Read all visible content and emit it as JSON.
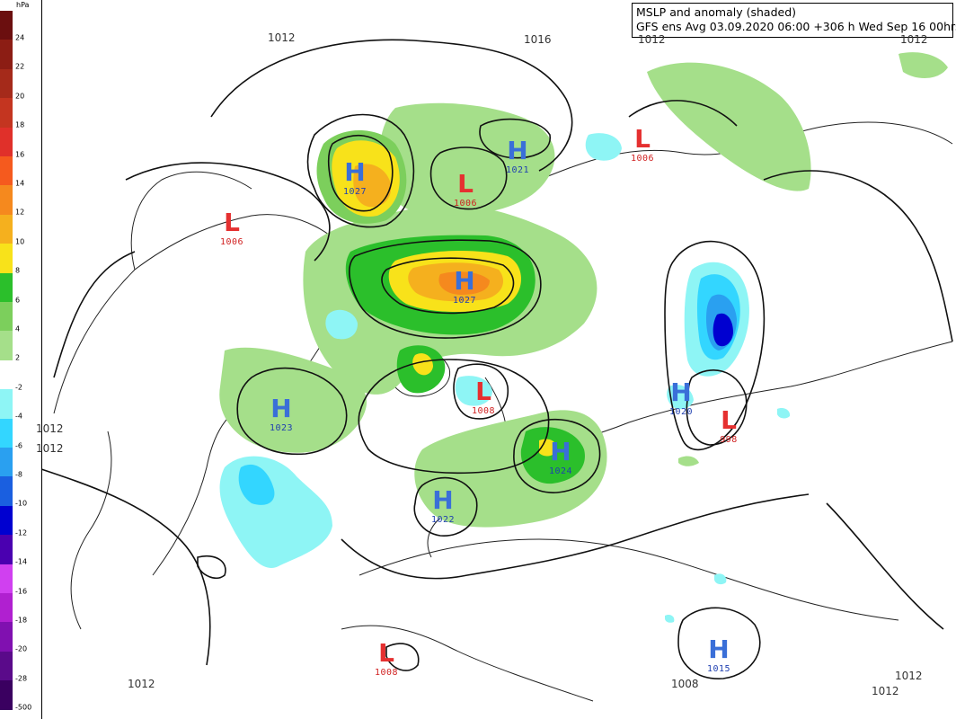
{
  "title": {
    "line1": "MSLP and anomaly (shaded)",
    "line2": "GFS ens Avg 03.09.2020 06:00 +306 h Wed Sep 16 00hrs"
  },
  "legend": {
    "unit": "hPa",
    "ticks": [
      "24",
      "22",
      "20",
      "18",
      "16",
      "14",
      "12",
      "10",
      "8",
      "6",
      "4",
      "2",
      "-2",
      "-4",
      "-6",
      "-8",
      "-10",
      "-12",
      "-14",
      "-16",
      "-18",
      "-20",
      "-28",
      "-500"
    ],
    "colors": [
      "#6b0f0f",
      "#8c1d14",
      "#a52a1a",
      "#c43520",
      "#e0302a",
      "#f55a1e",
      "#f5891e",
      "#f5b01e",
      "#f8e21a",
      "#2bbf2b",
      "#7ccf5c",
      "#a5df8a",
      "#ffffff",
      "#8ef5f5",
      "#33d6ff",
      "#2aa0f0",
      "#1a5fe0",
      "#0000d0",
      "#4a00b0",
      "#d040f0",
      "#b020d0",
      "#8010b0",
      "#5a0a8a",
      "#3a0060"
    ]
  },
  "centers": [
    {
      "type": "H",
      "letter": "H",
      "value": "1027"
    },
    {
      "type": "L",
      "letter": "L",
      "value": "1006"
    },
    {
      "type": "H",
      "letter": "H",
      "value": "1021"
    },
    {
      "type": "L",
      "letter": "L",
      "value": "1006"
    },
    {
      "type": "L",
      "letter": "L",
      "value": "1006"
    },
    {
      "type": "H",
      "letter": "H",
      "value": "1027"
    },
    {
      "type": "L",
      "letter": "L",
      "value": "1008"
    },
    {
      "type": "H",
      "letter": "H",
      "value": "1023"
    },
    {
      "type": "H",
      "letter": "H",
      "value": "1024"
    },
    {
      "type": "H",
      "letter": "H",
      "value": "1020"
    },
    {
      "type": "L",
      "letter": "L",
      "value": "998"
    },
    {
      "type": "H",
      "letter": "H",
      "value": "1022"
    },
    {
      "type": "L",
      "letter": "L",
      "value": "1008"
    },
    {
      "type": "H",
      "letter": "H",
      "value": "1015"
    }
  ],
  "isobar_labels": [
    "1012",
    "1016",
    "1012",
    "1012",
    "1012",
    "1012",
    "1012",
    "1008",
    "1012",
    "1012"
  ]
}
